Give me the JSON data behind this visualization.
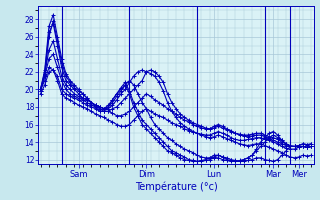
{
  "xlabel": "Température (°c)",
  "background_color": "#c8e8ee",
  "plot_bg_color": "#daf2f6",
  "grid_color": "#a8c8d8",
  "line_color": "#0000bb",
  "ylim": [
    11.5,
    29.5
  ],
  "yticks": [
    12,
    14,
    16,
    18,
    20,
    22,
    24,
    26,
    28
  ],
  "day_labels": [
    "Sam",
    "Dim",
    "Lun",
    "Mar",
    "Mer"
  ],
  "day_tick_positions": [
    9,
    25,
    41,
    55,
    61
  ],
  "day_sep_positions": [
    5,
    21,
    37,
    53,
    59
  ],
  "n_points": 65,
  "series": [
    [
      19.5,
      20.5,
      22.0,
      22.2,
      21.0,
      19.5,
      19.0,
      18.8,
      18.5,
      18.2,
      18.0,
      17.8,
      17.5,
      17.2,
      17.0,
      16.8,
      16.5,
      16.3,
      16.0,
      15.8,
      15.8,
      16.0,
      16.5,
      17.0,
      17.5,
      17.8,
      17.5,
      17.2,
      17.0,
      16.8,
      16.5,
      16.2,
      16.0,
      15.8,
      15.5,
      15.3,
      15.2,
      15.0,
      14.9,
      14.8,
      14.8,
      15.0,
      15.2,
      15.0,
      14.8,
      14.5,
      14.3,
      14.2,
      14.2,
      14.3,
      14.4,
      14.5,
      14.5,
      14.3,
      14.2,
      14.0,
      13.8,
      13.5,
      13.3,
      13.2,
      13.2,
      13.4,
      13.5,
      13.4,
      13.5
    ],
    [
      20.0,
      21.0,
      22.5,
      22.2,
      21.5,
      20.0,
      19.5,
      19.2,
      19.0,
      18.8,
      18.5,
      18.2,
      18.0,
      17.8,
      17.5,
      17.5,
      17.5,
      17.3,
      17.0,
      17.0,
      17.2,
      17.5,
      18.0,
      18.5,
      19.0,
      19.5,
      19.2,
      18.8,
      18.5,
      18.2,
      17.8,
      17.5,
      17.2,
      16.8,
      16.5,
      16.3,
      16.0,
      15.8,
      15.6,
      15.5,
      15.5,
      15.8,
      16.0,
      15.8,
      15.5,
      15.3,
      15.0,
      14.9,
      14.8,
      14.8,
      14.9,
      15.0,
      15.0,
      14.8,
      14.6,
      14.5,
      14.3,
      14.0,
      13.8,
      13.6,
      13.5,
      13.6,
      13.8,
      13.7,
      13.8
    ],
    [
      19.8,
      21.5,
      23.5,
      24.0,
      22.5,
      21.0,
      20.0,
      19.5,
      19.2,
      19.0,
      18.8,
      18.5,
      18.2,
      18.0,
      17.8,
      17.5,
      17.5,
      17.8,
      18.0,
      18.5,
      19.0,
      19.5,
      20.0,
      20.5,
      21.0,
      22.0,
      22.2,
      22.0,
      21.5,
      20.8,
      19.5,
      18.5,
      17.8,
      17.2,
      16.8,
      16.5,
      16.2,
      16.0,
      15.8,
      15.6,
      15.5,
      15.6,
      15.8,
      15.6,
      15.4,
      15.2,
      15.0,
      14.8,
      14.7,
      14.6,
      14.7,
      14.8,
      14.8,
      14.6,
      14.4,
      14.2,
      14.0,
      13.8,
      13.6,
      13.5,
      13.5,
      13.6,
      13.8,
      13.7,
      13.8
    ],
    [
      20.0,
      21.8,
      24.5,
      25.5,
      23.5,
      21.5,
      20.5,
      20.0,
      19.5,
      19.2,
      19.0,
      18.8,
      18.5,
      18.2,
      18.0,
      17.8,
      17.8,
      18.2,
      18.8,
      19.5,
      20.0,
      20.8,
      21.5,
      22.0,
      22.2,
      22.0,
      21.8,
      21.5,
      20.8,
      19.8,
      18.5,
      17.5,
      16.8,
      16.2,
      15.8,
      15.5,
      15.2,
      15.0,
      14.8,
      14.6,
      14.5,
      14.6,
      14.8,
      14.6,
      14.4,
      14.2,
      14.0,
      13.8,
      13.7,
      13.6,
      13.7,
      13.8,
      13.8,
      13.6,
      13.4,
      13.2,
      13.0,
      12.8,
      12.5,
      12.3,
      12.2,
      12.3,
      12.5,
      12.4,
      12.5
    ],
    [
      20.0,
      22.0,
      26.5,
      27.5,
      25.0,
      22.5,
      21.0,
      20.5,
      20.0,
      19.5,
      19.0,
      18.8,
      18.5,
      18.2,
      18.0,
      17.8,
      18.0,
      18.5,
      19.2,
      19.8,
      20.5,
      21.0,
      20.5,
      19.5,
      18.5,
      17.8,
      16.8,
      16.0,
      15.5,
      15.0,
      14.5,
      14.2,
      13.8,
      13.5,
      13.2,
      13.0,
      12.8,
      12.5,
      12.3,
      12.2,
      12.2,
      12.3,
      12.5,
      12.3,
      12.2,
      12.0,
      11.9,
      11.8,
      11.8,
      11.9,
      12.0,
      12.2,
      12.2,
      12.0,
      11.9,
      11.8,
      12.0,
      12.5,
      13.0,
      13.5,
      13.5,
      13.4,
      13.5,
      13.4,
      13.5
    ],
    [
      20.0,
      22.2,
      27.2,
      28.5,
      26.0,
      23.5,
      21.8,
      21.0,
      20.5,
      20.0,
      19.5,
      19.0,
      18.5,
      18.2,
      18.0,
      17.8,
      18.2,
      18.8,
      19.5,
      20.2,
      20.8,
      19.8,
      18.5,
      17.5,
      16.5,
      16.0,
      15.5,
      15.0,
      14.5,
      14.0,
      13.5,
      13.0,
      12.8,
      12.5,
      12.3,
      12.0,
      11.9,
      11.8,
      11.8,
      11.9,
      12.0,
      12.2,
      12.2,
      12.0,
      11.9,
      11.8,
      11.8,
      11.9,
      12.0,
      12.2,
      12.5,
      13.0,
      13.5,
      14.0,
      14.5,
      14.8,
      14.5,
      14.2,
      13.8,
      13.5,
      13.5,
      13.5,
      13.5,
      13.4,
      13.5
    ],
    [
      19.8,
      21.5,
      26.0,
      27.8,
      25.5,
      23.0,
      21.5,
      20.8,
      20.2,
      19.8,
      19.5,
      19.0,
      18.5,
      18.0,
      17.5,
      17.5,
      18.0,
      18.8,
      19.5,
      20.0,
      20.5,
      19.5,
      18.0,
      17.0,
      16.0,
      15.5,
      15.0,
      14.5,
      14.0,
      13.5,
      13.0,
      12.8,
      12.5,
      12.2,
      12.0,
      11.9,
      11.8,
      11.8,
      11.9,
      12.0,
      12.2,
      12.5,
      12.5,
      12.3,
      12.0,
      11.9,
      11.8,
      11.8,
      12.0,
      12.2,
      12.5,
      13.2,
      14.0,
      14.5,
      15.0,
      15.2,
      14.8,
      14.2,
      13.8,
      13.5,
      13.5,
      13.5,
      13.5,
      13.4,
      13.5
    ]
  ],
  "marker": "+",
  "markersize": 3,
  "linewidth": 0.8
}
